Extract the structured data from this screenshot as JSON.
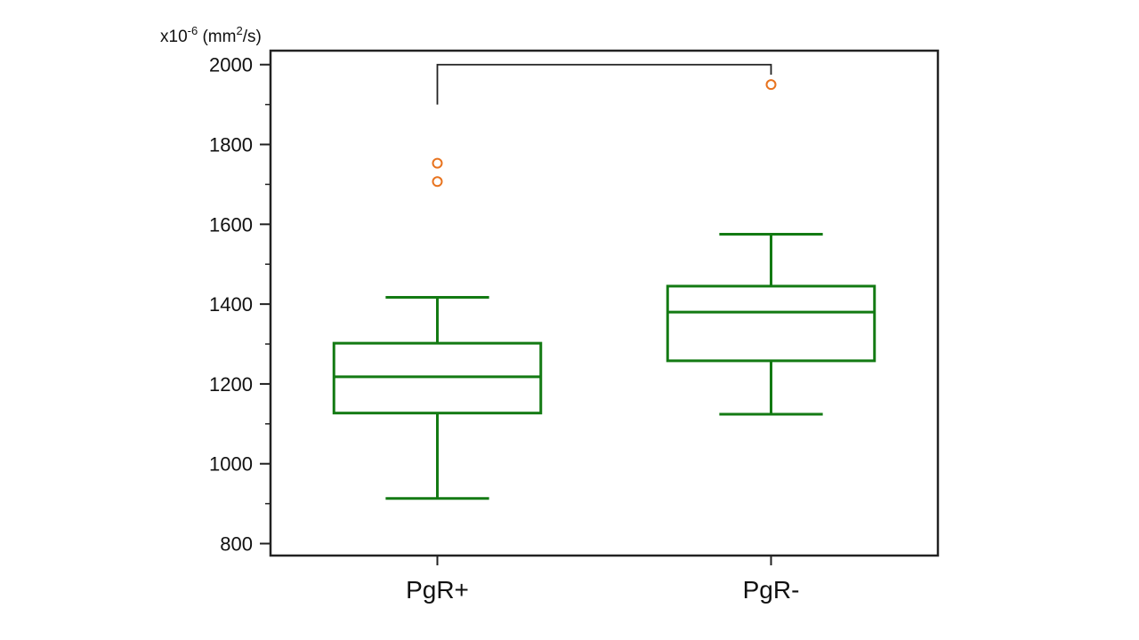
{
  "chart_data": {
    "type": "box",
    "ylabel": {
      "prefix": "x10",
      "exponent": "-6",
      "unit_open": " (mm",
      "unit_power": "2",
      "unit_close": "/s)"
    },
    "ylim": [
      770,
      2035
    ],
    "y_ticks": [
      800,
      1000,
      1200,
      1400,
      1600,
      1800,
      2000
    ],
    "y_minor_ticks": [
      900,
      1100,
      1300,
      1500,
      1700,
      1900
    ],
    "grid": false,
    "categories": [
      "PgR+",
      "PgR-"
    ],
    "boxes": [
      {
        "name": "PgR+",
        "whisker_low": 913,
        "q1": 1127,
        "median": 1218,
        "q3": 1302,
        "whisker_high": 1417,
        "outliers": [
          1707,
          1753
        ]
      },
      {
        "name": "PgR-",
        "whisker_low": 1124,
        "q1": 1258,
        "median": 1380,
        "q3": 1445,
        "whisker_high": 1575,
        "outliers": [
          1950
        ]
      }
    ],
    "significance_bracket": {
      "from": "PgR+",
      "to": "PgR-",
      "y": 2000,
      "left_end": 1900,
      "right_end": 1975
    },
    "colors": {
      "box": "#137a13",
      "outlier": "#e8731e",
      "axis": "#222222",
      "bracket": "#222222"
    }
  }
}
